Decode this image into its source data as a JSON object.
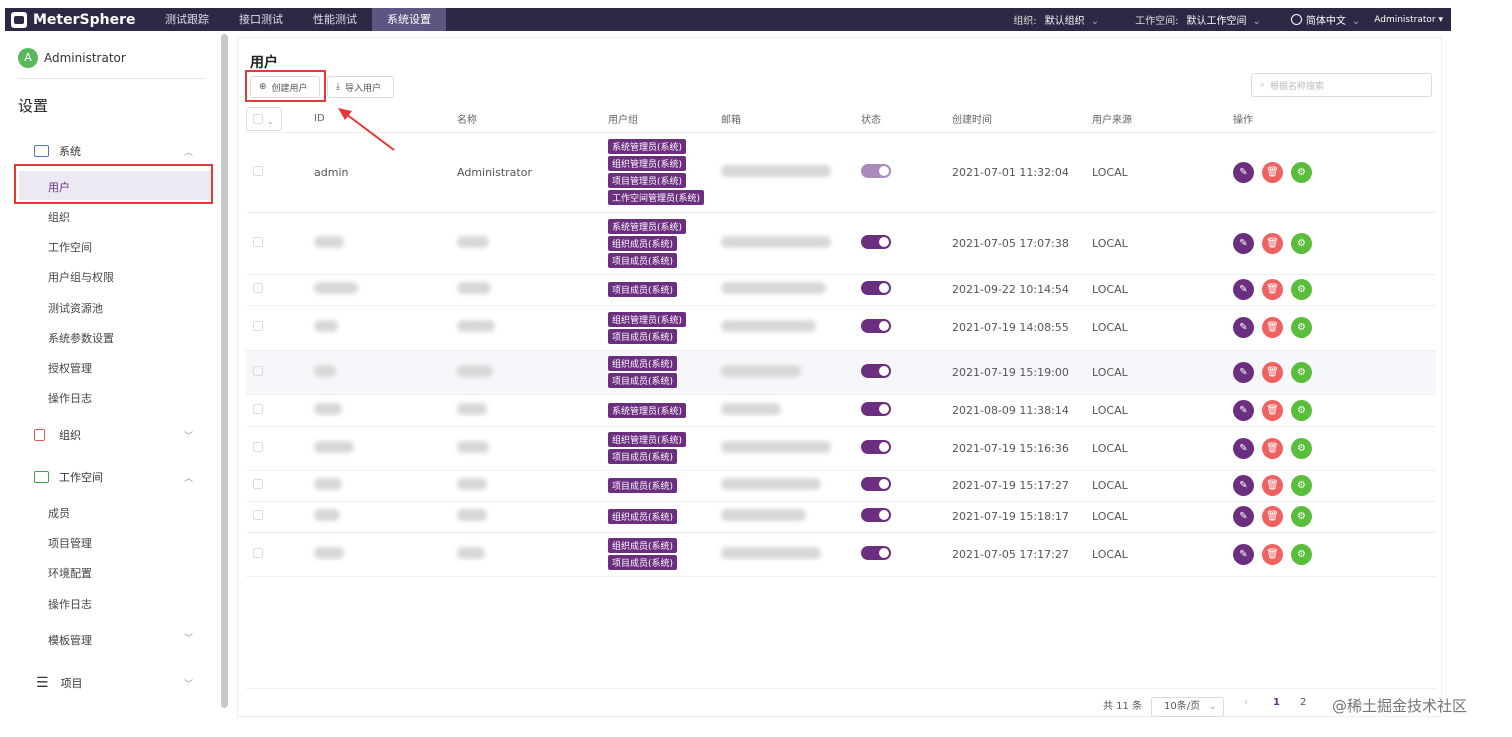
{
  "topbar": {
    "logo": "MeterSphere",
    "nav": [
      "测试跟踪",
      "接口测试",
      "性能测试",
      "系统设置"
    ],
    "active_nav": "系统设置",
    "org_label": "组织:",
    "org_value": "默认组织",
    "ws_label": "工作空间:",
    "ws_value": "默认工作空间",
    "language": "简体中文",
    "user": "Administrator"
  },
  "sidebar": {
    "avatar_letter": "A",
    "user_name": "Administrator",
    "title": "设置",
    "system_label": "系统",
    "system_items": [
      "用户",
      "组织",
      "工作空间",
      "用户组与权限",
      "测试资源池",
      "系统参数设置",
      "授权管理",
      "操作日志"
    ],
    "org_label": "组织",
    "workspace_label": "工作空间",
    "workspace_items": [
      "成员",
      "项目管理",
      "环境配置",
      "操作日志"
    ],
    "template_label": "模板管理",
    "project_label": "项目"
  },
  "main": {
    "title": "用户",
    "create_btn": "创建用户",
    "import_btn": "导入用户",
    "search_placeholder": "根据名称搜索",
    "columns": [
      "ID",
      "名称",
      "用户组",
      "邮箱",
      "状态",
      "创建时间",
      "用户来源",
      "操作"
    ],
    "rows": [
      {
        "id": "admin",
        "name": "Administrator",
        "groups": [
          "系统管理员(系统)",
          "组织管理员(系统)",
          "项目管理员(系统)",
          "工作空间管理员(系统)"
        ],
        "created": "2021-07-01 11:32:04",
        "source": "LOCAL"
      },
      {
        "id": "",
        "name": "",
        "groups": [
          "系统管理员(系统)",
          "组织成员(系统)",
          "项目成员(系统)"
        ],
        "created": "2021-07-05 17:07:38",
        "source": "LOCAL"
      },
      {
        "id": "",
        "name": "",
        "groups": [
          "项目成员(系统)"
        ],
        "created": "2021-09-22 10:14:54",
        "source": "LOCAL"
      },
      {
        "id": "",
        "name": "",
        "groups": [
          "组织管理员(系统)",
          "项目成员(系统)"
        ],
        "created": "2021-07-19 14:08:55",
        "source": "LOCAL"
      },
      {
        "id": "",
        "name": "",
        "groups": [
          "组织成员(系统)",
          "项目成员(系统)"
        ],
        "created": "2021-07-19 15:19:00",
        "source": "LOCAL"
      },
      {
        "id": "",
        "name": "",
        "groups": [
          "系统管理员(系统)"
        ],
        "created": "2021-08-09 11:38:14",
        "source": "LOCAL"
      },
      {
        "id": "",
        "name": "",
        "groups": [
          "组织管理员(系统)",
          "项目成员(系统)"
        ],
        "created": "2021-07-19 15:16:36",
        "source": "LOCAL"
      },
      {
        "id": "",
        "name": "",
        "groups": [
          "项目成员(系统)"
        ],
        "created": "2021-07-19 15:17:27",
        "source": "LOCAL"
      },
      {
        "id": "",
        "name": "",
        "groups": [
          "组织成员(系统)"
        ],
        "created": "2021-07-19 15:18:17",
        "source": "LOCAL"
      },
      {
        "id": "",
        "name": "",
        "groups": [
          "组织成员(系统)",
          "项目成员(系统)"
        ],
        "created": "2021-07-05 17:17:27",
        "source": "LOCAL"
      }
    ]
  },
  "pager": {
    "total": "共 11 条",
    "page_size": "10条/页",
    "pages": [
      "1",
      "2"
    ],
    "current": "1"
  },
  "watermark": "@稀土掘金技术社区",
  "colors": {
    "accent": "#6c2f80",
    "topbar": "#2e2746",
    "edit": "#6c2f80",
    "delete": "#f06262",
    "settings": "#5bbd3c"
  }
}
